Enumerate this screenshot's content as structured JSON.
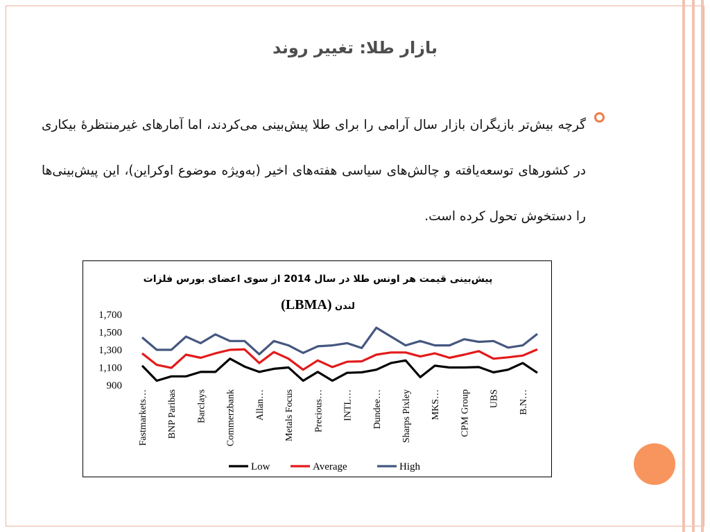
{
  "slide": {
    "title": "بازار طلا: تغییر روند",
    "bullet_text": "گرچه بیش‌تر بازیگران بازار سال آرامی را برای طلا پیش‌بینی می‌کردند، اما آمارهای غیرمنتظرهٔ بیکاری در کشورهای توسعه‌یافته و چالش‌های سیاسی هفته‌های اخیر (به‌ویژه موضوع اوکراین)، این پیش‌بینی‌ها را دستخوش تحول کرده است."
  },
  "theme": {
    "accent": "#f07c44",
    "deco_circle": "#f8955f",
    "stripe": "#f2c3b0"
  },
  "chart_data": {
    "type": "line",
    "title_line1": "پیش‌بینی قیمت هر اونس طلا در سال 2014 از سوی اعضای بورس فلزات",
    "title_line2_fa": "لندن",
    "title_line2_en": "(LBMA)",
    "ylim": [
      900,
      1700
    ],
    "yticks": [
      "1,700",
      "1,500",
      "1,300",
      "1,100",
      "900"
    ],
    "ytick_values": [
      1700,
      1500,
      1300,
      1100,
      900
    ],
    "categories": [
      "Fastmarkets…",
      "",
      "BNP Paribas",
      "",
      "Barclays",
      "",
      "Commerzbank",
      "",
      "Allan…",
      "",
      "Metals Focus",
      "",
      "Precious…",
      "",
      "INTL…",
      "",
      "Dundee…",
      "",
      "Sharps Pixley",
      "",
      "MKS…",
      "",
      "CPM Group",
      "",
      "UBS",
      "",
      "B.N…",
      ""
    ],
    "series": [
      {
        "name": "Low",
        "color": "#000000",
        "values": [
          1120,
          950,
          1000,
          1000,
          1050,
          1050,
          1200,
          1110,
          1050,
          1085,
          1100,
          950,
          1050,
          950,
          1040,
          1045,
          1075,
          1150,
          1180,
          990,
          1120,
          1100,
          1100,
          1105,
          1045,
          1075,
          1150,
          1040
        ]
      },
      {
        "name": "Average",
        "color": "#e31a1a",
        "values": [
          1260,
          1130,
          1095,
          1245,
          1210,
          1260,
          1300,
          1305,
          1150,
          1275,
          1200,
          1075,
          1180,
          1105,
          1165,
          1170,
          1245,
          1270,
          1270,
          1225,
          1260,
          1210,
          1245,
          1285,
          1200,
          1215,
          1235,
          1305
        ]
      },
      {
        "name": "High",
        "color": "#44577f",
        "values": [
          1440,
          1300,
          1300,
          1450,
          1375,
          1475,
          1400,
          1400,
          1250,
          1400,
          1350,
          1265,
          1340,
          1350,
          1375,
          1320,
          1550,
          1450,
          1350,
          1400,
          1350,
          1350,
          1420,
          1390,
          1400,
          1325,
          1350,
          1480
        ]
      }
    ]
  }
}
